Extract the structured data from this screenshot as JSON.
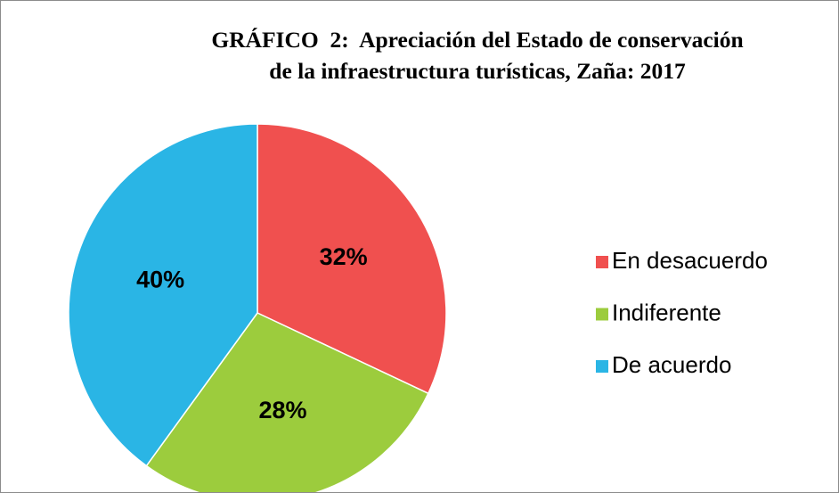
{
  "chart_data": {
    "type": "pie",
    "title": "GRÁFICO  2:  Apreciación del Estado de conservación de la infraestructura turísticas, Zaña: 2017",
    "categories": [
      "En desacuerdo",
      "Indiferente",
      "De acuerdo"
    ],
    "values": [
      32,
      28,
      40
    ],
    "value_labels": [
      "32%",
      "28%",
      "40%"
    ],
    "colors": [
      "#f0504f",
      "#9ccc3d",
      "#2ab5e5"
    ],
    "legend": "right"
  }
}
